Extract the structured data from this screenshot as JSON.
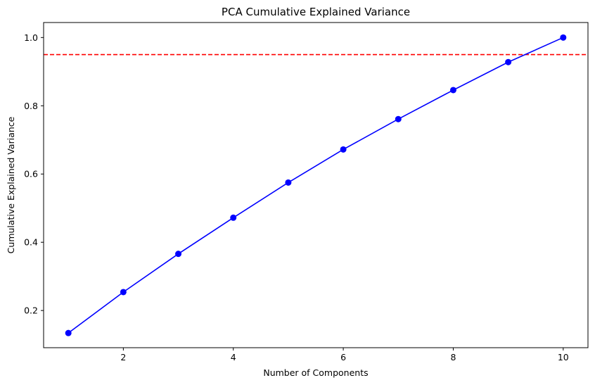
{
  "chart_data": {
    "type": "line",
    "title": "PCA Cumulative Explained Variance",
    "xlabel": "Number of Components",
    "ylabel": "Cumulative Explained Variance",
    "xlim": [
      0.55,
      10.45
    ],
    "ylim": [
      0.091,
      1.044
    ],
    "xticks": [
      2,
      4,
      6,
      8,
      10
    ],
    "yticks": [
      0.2,
      0.4,
      0.6,
      0.8,
      1.0
    ],
    "xtick_labels": [
      "2",
      "4",
      "6",
      "8",
      "10"
    ],
    "ytick_labels": [
      "0.2",
      "0.4",
      "0.6",
      "0.8",
      "1.0"
    ],
    "grid": false,
    "series": [
      {
        "x": [
          1,
          2,
          3,
          4,
          5,
          6,
          7,
          8,
          9,
          10
        ],
        "values": [
          0.134,
          0.254,
          0.366,
          0.472,
          0.575,
          0.672,
          0.761,
          0.846,
          0.928,
          1.0
        ],
        "color": "#0000ff",
        "marker": "circle"
      }
    ],
    "threshold": {
      "y": 0.95,
      "color": "#ff0000",
      "style": "dashed"
    }
  }
}
